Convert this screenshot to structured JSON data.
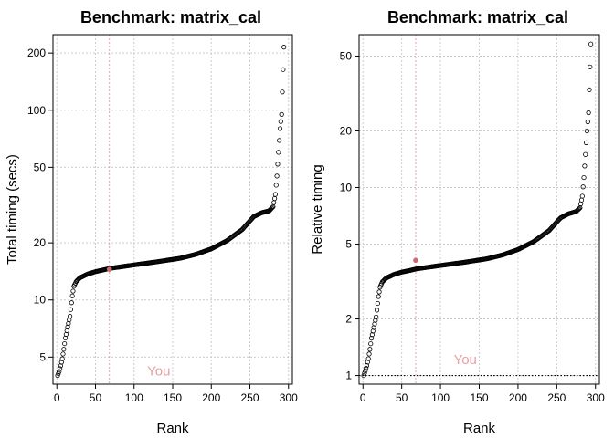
{
  "chart_data": [
    {
      "type": "scatter",
      "title": "Benchmark: matrix_cal",
      "xlabel": "Rank",
      "ylabel": "Total timing (secs)",
      "y_scale": "log",
      "xlim": [
        -5,
        305
      ],
      "ylim": [
        3.6,
        250
      ],
      "x_ticks": [
        0,
        50,
        100,
        150,
        200,
        250,
        300
      ],
      "y_ticks": [
        5,
        10,
        20,
        50,
        100,
        200
      ],
      "grid": true,
      "marker_line": {
        "x": 68,
        "color": "#e8a0a5"
      },
      "annotation": {
        "text": "You",
        "x": 132,
        "y": 4.0,
        "color": "#e8a0a5"
      },
      "highlight_point": {
        "x": 68,
        "y": 14.5,
        "color": "#d06a70"
      },
      "reference_line": null,
      "knots": [
        [
          1,
          4.0
        ],
        [
          3,
          4.2
        ],
        [
          5,
          4.5
        ],
        [
          7,
          4.9
        ],
        [
          9,
          5.5
        ],
        [
          11,
          6.3
        ],
        [
          14,
          7.2
        ],
        [
          17,
          8.2
        ],
        [
          20,
          10.5
        ],
        [
          22,
          11.8
        ],
        [
          25,
          12.5
        ],
        [
          30,
          13.1
        ],
        [
          40,
          13.7
        ],
        [
          50,
          14.1
        ],
        [
          60,
          14.4
        ],
        [
          70,
          14.7
        ],
        [
          100,
          15.3
        ],
        [
          130,
          15.9
        ],
        [
          160,
          16.6
        ],
        [
          180,
          17.4
        ],
        [
          200,
          18.6
        ],
        [
          220,
          20.5
        ],
        [
          240,
          23.5
        ],
        [
          255,
          27.5
        ],
        [
          265,
          28.8
        ],
        [
          275,
          29.5
        ],
        [
          280,
          31
        ],
        [
          283,
          36
        ],
        [
          285,
          45
        ],
        [
          287,
          60
        ],
        [
          289,
          80
        ],
        [
          291,
          95
        ],
        [
          294,
          215
        ]
      ]
    },
    {
      "type": "scatter",
      "title": "Benchmark: matrix_cal",
      "xlabel": "Rank",
      "ylabel": "Relative timing",
      "y_scale": "log",
      "xlim": [
        -5,
        305
      ],
      "ylim": [
        0.9,
        65
      ],
      "x_ticks": [
        0,
        50,
        100,
        150,
        200,
        250,
        300
      ],
      "y_ticks": [
        1,
        2,
        5,
        10,
        20,
        50
      ],
      "grid": true,
      "marker_line": {
        "x": 68,
        "color": "#e8a0a5"
      },
      "annotation": {
        "text": "You",
        "x": 132,
        "y": 1.15,
        "color": "#e8a0a5"
      },
      "highlight_point": {
        "x": 68,
        "y": 4.1,
        "color": "#d06a70"
      },
      "reference_line": {
        "y": 1,
        "style": "dotted"
      },
      "knots": [
        [
          1,
          1.0
        ],
        [
          3,
          1.06
        ],
        [
          5,
          1.13
        ],
        [
          7,
          1.23
        ],
        [
          9,
          1.38
        ],
        [
          11,
          1.58
        ],
        [
          14,
          1.8
        ],
        [
          17,
          2.05
        ],
        [
          20,
          2.63
        ],
        [
          22,
          2.95
        ],
        [
          25,
          3.15
        ],
        [
          30,
          3.3
        ],
        [
          40,
          3.45
        ],
        [
          50,
          3.55
        ],
        [
          60,
          3.62
        ],
        [
          70,
          3.7
        ],
        [
          100,
          3.85
        ],
        [
          130,
          4.0
        ],
        [
          160,
          4.18
        ],
        [
          180,
          4.38
        ],
        [
          200,
          4.68
        ],
        [
          220,
          5.15
        ],
        [
          240,
          5.9
        ],
        [
          255,
          6.9
        ],
        [
          265,
          7.25
        ],
        [
          275,
          7.45
        ],
        [
          280,
          7.8
        ],
        [
          283,
          9.0
        ],
        [
          285,
          11.3
        ],
        [
          287,
          15
        ],
        [
          289,
          20
        ],
        [
          291,
          25
        ],
        [
          294,
          58
        ]
      ]
    }
  ]
}
